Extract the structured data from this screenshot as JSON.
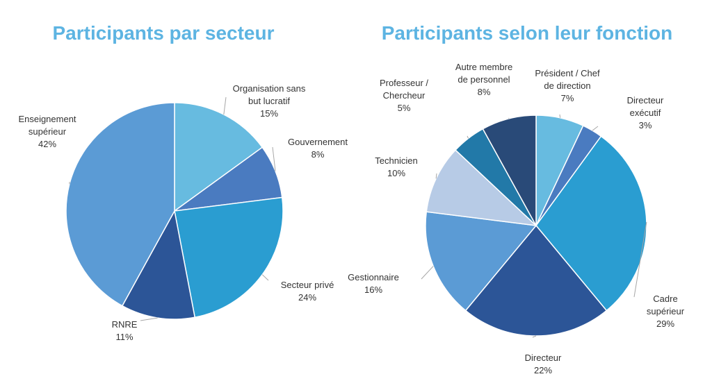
{
  "chart_data": [
    {
      "type": "pie",
      "title": "Participants par secteur",
      "slices": [
        {
          "label": "Organisation sans\nbut lucratif",
          "value": 15,
          "pct": "15%",
          "color": "#67bbe0"
        },
        {
          "label": "Gouvernement",
          "value": 8,
          "pct": "8%",
          "color": "#4a7bc0"
        },
        {
          "label": "Secteur privé",
          "value": 24,
          "pct": "24%",
          "color": "#2a9dd1"
        },
        {
          "label": "RNRE",
          "value": 11,
          "pct": "11%",
          "color": "#2c5597"
        },
        {
          "label": "Enseignement\nsupérieur",
          "value": 42,
          "pct": "42%",
          "color": "#5b9bd5"
        }
      ]
    },
    {
      "type": "pie",
      "title": "Participants selon leur fonction",
      "slices": [
        {
          "label": "Président / Chef\nde direction",
          "value": 7,
          "pct": "7%",
          "color": "#67bbe0"
        },
        {
          "label": "Directeur\nexécutif",
          "value": 3,
          "pct": "3%",
          "color": "#4a7bc0"
        },
        {
          "label": "Cadre supérieur",
          "value": 29,
          "pct": "29%",
          "color": "#2a9dd1"
        },
        {
          "label": "Directeur",
          "value": 22,
          "pct": "22%",
          "color": "#2c5597"
        },
        {
          "label": "Gestionnaire",
          "value": 16,
          "pct": "16%",
          "color": "#5b9bd5"
        },
        {
          "label": "Technicien",
          "value": 10,
          "pct": "10%",
          "color": "#b7cbe6"
        },
        {
          "label": "Professeur /\nChercheur",
          "value": 5,
          "pct": "5%",
          "color": "#2279a8"
        },
        {
          "label": "Autre membre\nde personnel",
          "value": 8,
          "pct": "8%",
          "color": "#294a78"
        }
      ]
    }
  ]
}
